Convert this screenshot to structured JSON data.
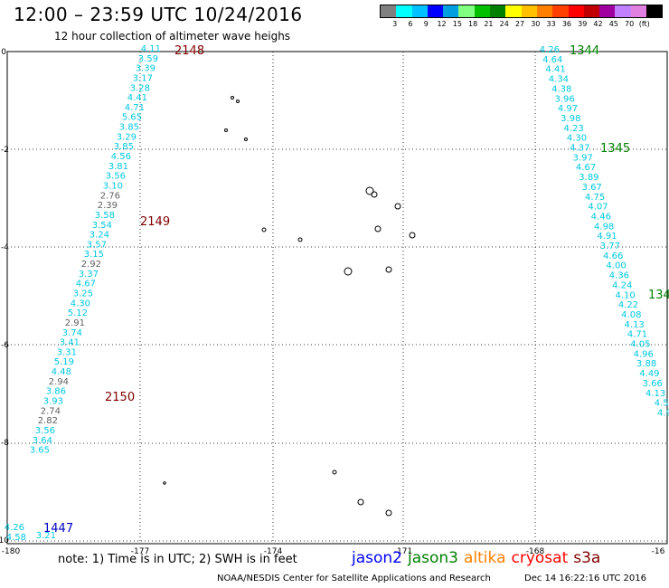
{
  "title": "12:00 – 23:59 UTC 10/24/2016",
  "subtitle": "12 hour collection of altimeter wave heighs",
  "legend": {
    "unit": "(ft)",
    "colors": [
      "#808080",
      "#00ffff",
      "#00c0ff",
      "#0000ff",
      "#00a0e0",
      "#80ff80",
      "#00c000",
      "#008000",
      "#ffff00",
      "#ffc000",
      "#ff8000",
      "#ff4000",
      "#ff0000",
      "#c00000",
      "#a000a0",
      "#c080ff",
      "#e080e0",
      "#000000"
    ],
    "labels": [
      "3",
      "6",
      "9",
      "12",
      "15",
      "18",
      "21",
      "24",
      "27",
      "30",
      "33",
      "36",
      "39",
      "42",
      "45",
      "70"
    ]
  },
  "axes": {
    "x_ticks": [
      "-180",
      "-177",
      "-174",
      "-171",
      "-168",
      "-16"
    ],
    "y_ticks": [
      "0",
      "-2",
      "-4",
      "-6",
      "-8",
      "-10"
    ]
  },
  "tracks": {
    "left": [
      {
        "v": "4.11",
        "c": "cyan"
      },
      {
        "v": "3.59",
        "c": "cyan"
      },
      {
        "v": "3.39",
        "c": "cyan"
      },
      {
        "v": "3.17",
        "c": "cyan"
      },
      {
        "v": "3.28",
        "c": "cyan"
      },
      {
        "v": "4.41",
        "c": "cyan"
      },
      {
        "v": "4.71",
        "c": "cyan"
      },
      {
        "v": "5.65",
        "c": "cyan"
      },
      {
        "v": "3.85",
        "c": "cyan"
      },
      {
        "v": "3.29",
        "c": "cyan"
      },
      {
        "v": "3.85",
        "c": "cyan"
      },
      {
        "v": "4.56",
        "c": "cyan"
      },
      {
        "v": "3.81",
        "c": "cyan"
      },
      {
        "v": "3.56",
        "c": "cyan"
      },
      {
        "v": "3.10",
        "c": "cyan"
      },
      {
        "v": "2.76",
        "c": "gray"
      },
      {
        "v": "2.39",
        "c": "gray"
      },
      {
        "v": "3.58",
        "c": "cyan"
      },
      {
        "v": "3.54",
        "c": "cyan"
      },
      {
        "v": "3.24",
        "c": "cyan"
      },
      {
        "v": "3.57",
        "c": "cyan"
      },
      {
        "v": "3.15",
        "c": "cyan"
      },
      {
        "v": "2.92",
        "c": "gray"
      },
      {
        "v": "3.37",
        "c": "cyan"
      },
      {
        "v": "4.67",
        "c": "cyan"
      },
      {
        "v": "3.25",
        "c": "cyan"
      },
      {
        "v": "4.30",
        "c": "cyan"
      },
      {
        "v": "5.12",
        "c": "cyan"
      },
      {
        "v": "2.91",
        "c": "gray"
      },
      {
        "v": "3.74",
        "c": "cyan"
      },
      {
        "v": "3.41",
        "c": "cyan"
      },
      {
        "v": "3.31",
        "c": "cyan"
      },
      {
        "v": "5.19",
        "c": "cyan"
      },
      {
        "v": "4.48",
        "c": "cyan"
      },
      {
        "v": "2.94",
        "c": "gray"
      },
      {
        "v": "3.86",
        "c": "cyan"
      },
      {
        "v": "3.93",
        "c": "cyan"
      },
      {
        "v": "2.74",
        "c": "gray"
      },
      {
        "v": "2.82",
        "c": "gray"
      },
      {
        "v": "3.56",
        "c": "cyan"
      },
      {
        "v": "3.64",
        "c": "cyan"
      },
      {
        "v": "3.65",
        "c": "cyan"
      },
      {
        "v": "4.26",
        "c": "cyan"
      },
      {
        "v": "4.58",
        "c": "cyan"
      },
      {
        "v": "3.21",
        "c": "cyan"
      }
    ],
    "right": [
      {
        "v": "4.26"
      },
      {
        "v": "4.64"
      },
      {
        "v": "4.41"
      },
      {
        "v": "4.34"
      },
      {
        "v": "4.38"
      },
      {
        "v": "3.96"
      },
      {
        "v": "4.97"
      },
      {
        "v": "3.98"
      },
      {
        "v": "4.23"
      },
      {
        "v": "4.30"
      },
      {
        "v": "4.37"
      },
      {
        "v": "3.97"
      },
      {
        "v": "4.67"
      },
      {
        "v": "3.89"
      },
      {
        "v": "3.67"
      },
      {
        "v": "4.75"
      },
      {
        "v": "4.07"
      },
      {
        "v": "4.46"
      },
      {
        "v": "4.98"
      },
      {
        "v": "4.91"
      },
      {
        "v": "3.77"
      },
      {
        "v": "4.66"
      },
      {
        "v": "4.00"
      },
      {
        "v": "4.36"
      },
      {
        "v": "4.24"
      },
      {
        "v": "4.10"
      },
      {
        "v": "4.22"
      },
      {
        "v": "4.08"
      },
      {
        "v": "4.13"
      },
      {
        "v": "4.71"
      },
      {
        "v": "4.05"
      },
      {
        "v": "4.96"
      },
      {
        "v": "3.88"
      },
      {
        "v": "4.49"
      },
      {
        "v": "3.66"
      },
      {
        "v": "4.13"
      },
      {
        "v": "4.5"
      },
      {
        "v": "4.9"
      },
      {
        "v": "4"
      }
    ]
  },
  "time_labels": [
    {
      "text": "2148",
      "color": "#800000"
    },
    {
      "text": "2149",
      "color": "#800000"
    },
    {
      "text": "2150",
      "color": "#800000"
    },
    {
      "text": "1447",
      "color": "#0000c0"
    },
    {
      "text": "1344",
      "color": "#008000"
    },
    {
      "text": "1345",
      "color": "#008000"
    },
    {
      "text": "134",
      "color": "#008000"
    }
  ],
  "note": "note: 1) Time is in UTC; 2) SWH is in feet",
  "sources": [
    {
      "name": "jason2",
      "color": "#0000ff"
    },
    {
      "name": "jason3",
      "color": "#008000"
    },
    {
      "name": "altika",
      "color": "#ff8000"
    },
    {
      "name": "cryosat",
      "color": "#ff0000"
    },
    {
      "name": "s3a",
      "color": "#800000"
    }
  ],
  "credit": "NOAA/NESDIS Center for Satellite Applications and Research",
  "generated": "Dec 14 16:22:16 UTC 2016"
}
